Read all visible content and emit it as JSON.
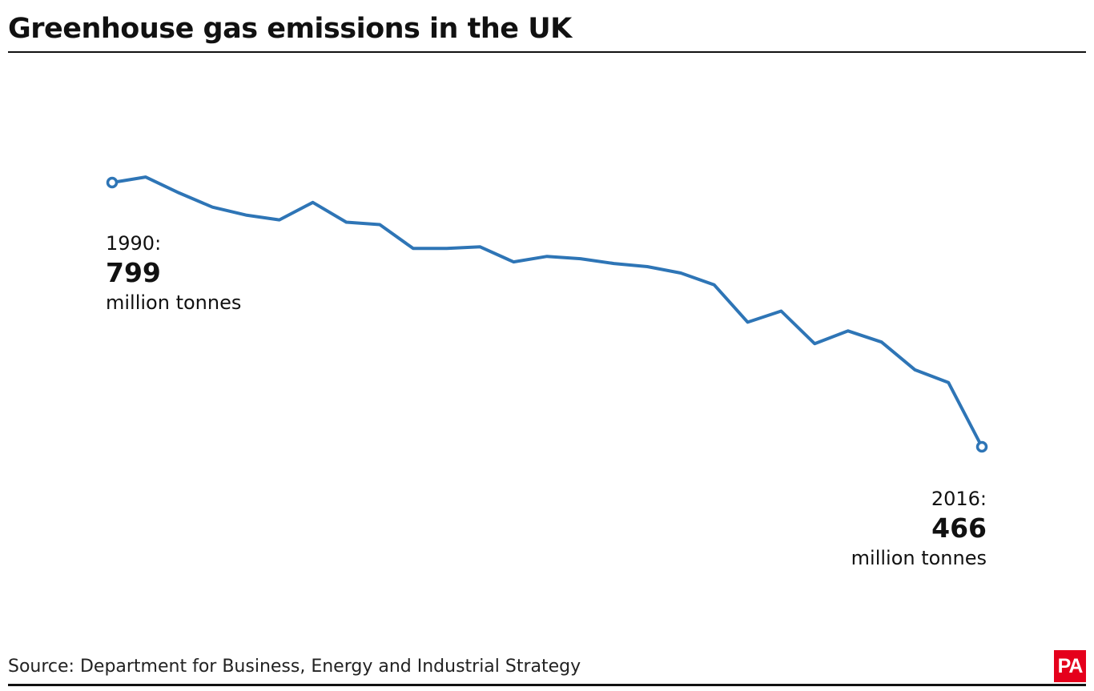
{
  "title": "Greenhouse gas emissions in the UK",
  "source": "Source: Department for Business, Energy and Industrial Strategy",
  "logo": "PA",
  "annotations": {
    "start": {
      "year": "1990:",
      "value": "799",
      "unit": "million tonnes"
    },
    "end": {
      "year": "2016:",
      "value": "466",
      "unit": "million tonnes"
    }
  },
  "colors": {
    "line": "#2e75b6",
    "logo": "#e5001c"
  },
  "chart_data": {
    "type": "line",
    "title": "Greenhouse gas emissions in the UK",
    "xlabel": "",
    "ylabel": "",
    "grid": false,
    "axes_visible": false,
    "x": [
      1990,
      1991,
      1992,
      1993,
      1994,
      1995,
      1996,
      1997,
      1998,
      1999,
      2000,
      2001,
      2002,
      2003,
      2004,
      2005,
      2006,
      2007,
      2008,
      2009,
      2010,
      2011,
      2012,
      2013,
      2014,
      2015,
      2016
    ],
    "series": [
      {
        "values": [
          799,
          806,
          786,
          768,
          758,
          752,
          774,
          749,
          746,
          716,
          716,
          718,
          699,
          706,
          703,
          697,
          693,
          685,
          670,
          623,
          637,
          596,
          612,
          598,
          563,
          547,
          466
        ]
      }
    ],
    "ylim": [
      440,
      820
    ]
  }
}
